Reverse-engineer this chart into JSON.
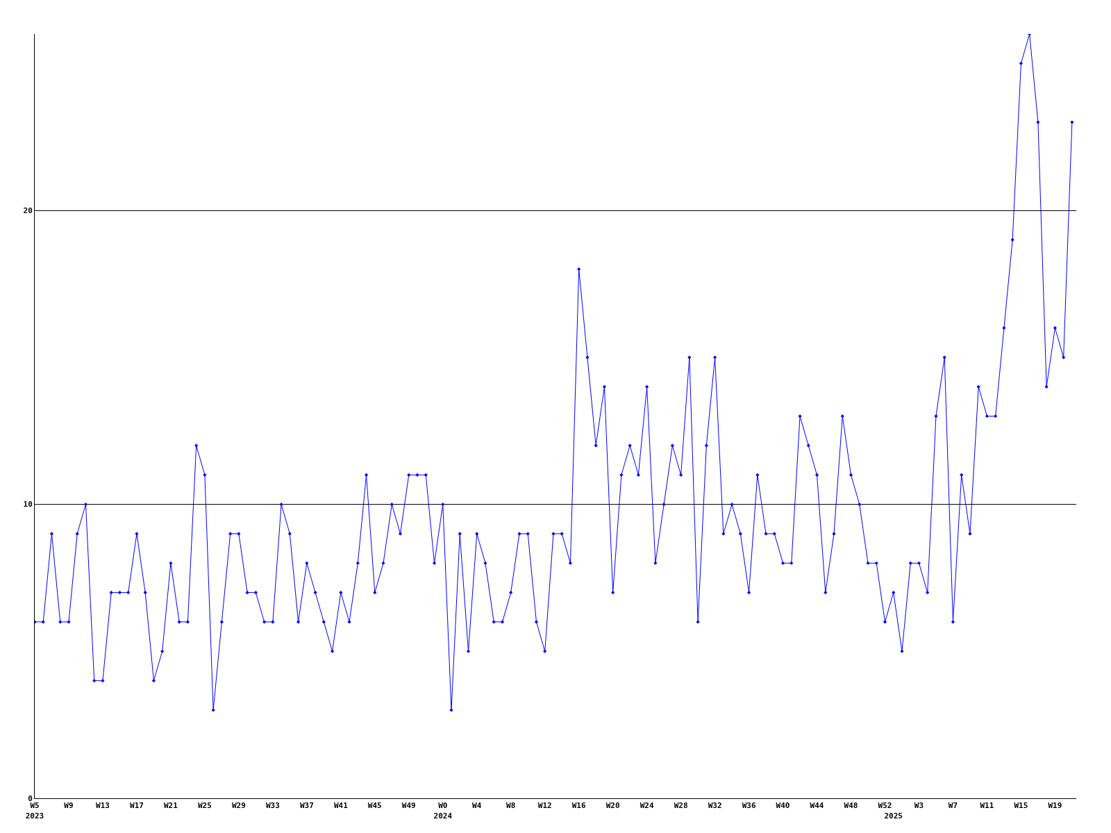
{
  "chart_data": {
    "type": "line",
    "categories": [
      "W5\n2023",
      null,
      null,
      null,
      "W9",
      null,
      null,
      null,
      "W13",
      null,
      null,
      null,
      "W17",
      null,
      null,
      null,
      "W21",
      null,
      null,
      null,
      "W25",
      null,
      null,
      null,
      "W29",
      null,
      null,
      null,
      "W33",
      null,
      null,
      null,
      "W37",
      null,
      null,
      null,
      "W41",
      null,
      null,
      null,
      "W45",
      null,
      null,
      null,
      "W49",
      null,
      null,
      null,
      "W0\n2024",
      null,
      null,
      null,
      "W4",
      null,
      null,
      null,
      "W8",
      null,
      null,
      null,
      "W12",
      null,
      null,
      null,
      "W16",
      null,
      null,
      null,
      "W20",
      null,
      null,
      null,
      "W24",
      null,
      null,
      null,
      "W28",
      null,
      null,
      null,
      "W32",
      null,
      null,
      null,
      "W36",
      null,
      null,
      null,
      "W40",
      null,
      null,
      null,
      "W44",
      null,
      null,
      null,
      "W48",
      null,
      null,
      null,
      "W52",
      "\n2025",
      null,
      null,
      "W3",
      null,
      null,
      null,
      "W7",
      null,
      null,
      null,
      "W11",
      null,
      null,
      null,
      "W15",
      null,
      null,
      null,
      "W19",
      null,
      null
    ],
    "series": [
      {
        "color": "#0000ff",
        "values": [
          6,
          6,
          9,
          6,
          6,
          9,
          10,
          4,
          4,
          7,
          7,
          7,
          9,
          7,
          4,
          5,
          8,
          6,
          6,
          12,
          11,
          3,
          6,
          9,
          9,
          7,
          7,
          6,
          6,
          10,
          9,
          6,
          8,
          7,
          6,
          5,
          7,
          6,
          8,
          11,
          7,
          8,
          10,
          9,
          11,
          11,
          11,
          8,
          10,
          3,
          9,
          5,
          9,
          8,
          6,
          6,
          7,
          9,
          9,
          6,
          5,
          9,
          9,
          8,
          18,
          15,
          12,
          14,
          7,
          11,
          12,
          11,
          14,
          8,
          10,
          12,
          11,
          15,
          6,
          12,
          15,
          9,
          10,
          9,
          7,
          11,
          9,
          9,
          8,
          8,
          13,
          12,
          11,
          7,
          9,
          13,
          11,
          10,
          8,
          8,
          6,
          7,
          5,
          8,
          8,
          7,
          13,
          15,
          6,
          11,
          9,
          14,
          13,
          13,
          16,
          19,
          25,
          26,
          23,
          14,
          16,
          15,
          23
        ]
      }
    ],
    "ylim": [
      0,
      26
    ],
    "yticks": [
      0,
      10,
      20
    ],
    "grid": "y",
    "legend": false,
    "marker": "diamond",
    "line_style": "solid"
  }
}
